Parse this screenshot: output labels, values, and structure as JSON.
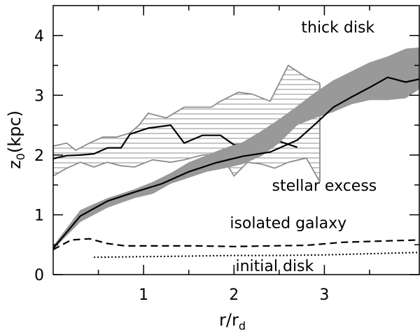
{
  "chart_data": {
    "type": "line",
    "xlim": [
      0.0,
      4.05
    ],
    "ylim": [
      0.0,
      4.5
    ],
    "xticks": [
      1,
      2,
      3
    ],
    "yticks": [
      0,
      1,
      2,
      3,
      4
    ],
    "xticks_minor": [
      0.5,
      1.5,
      2.5,
      3.5
    ],
    "yticks_minor": [
      0.5,
      1.5,
      2.5,
      3.5
    ],
    "xlabel": {
      "main": "r/r",
      "sub": "d"
    },
    "ylabel": {
      "main": "z",
      "sub": "0",
      "rest": "(kpc)"
    },
    "grid": false,
    "annotations": {
      "thick_disk": "thick disk",
      "stellar_excess": "stellar excess",
      "isolated_galaxy": "isolated galaxy",
      "initial_disk": "initial disk"
    },
    "colors": {
      "band_gray": "#999999",
      "hatch_gray": "#8c8c8c",
      "line": "#000000"
    },
    "series": [
      {
        "style": "hatched-band",
        "upper": [
          [
            0.0,
            2.15
          ],
          [
            0.15,
            2.2
          ],
          [
            0.25,
            2.08
          ],
          [
            0.4,
            2.2
          ],
          [
            0.55,
            2.3
          ],
          [
            0.7,
            2.3
          ],
          [
            0.85,
            2.37
          ],
          [
            0.95,
            2.5
          ],
          [
            1.05,
            2.7
          ],
          [
            1.25,
            2.62
          ],
          [
            1.45,
            2.8
          ],
          [
            1.75,
            2.8
          ],
          [
            1.85,
            2.9
          ],
          [
            2.05,
            3.05
          ],
          [
            2.2,
            3.02
          ],
          [
            2.4,
            2.9
          ],
          [
            2.6,
            3.5
          ],
          [
            2.8,
            3.3
          ],
          [
            2.95,
            3.2
          ]
        ],
        "lower": [
          [
            0.0,
            1.65
          ],
          [
            0.15,
            1.78
          ],
          [
            0.3,
            1.88
          ],
          [
            0.45,
            1.8
          ],
          [
            0.6,
            1.88
          ],
          [
            0.75,
            1.82
          ],
          [
            0.9,
            1.8
          ],
          [
            1.1,
            1.92
          ],
          [
            1.3,
            1.88
          ],
          [
            1.45,
            1.92
          ],
          [
            1.65,
            2.0
          ],
          [
            1.85,
            2.02
          ],
          [
            2.0,
            1.65
          ],
          [
            2.15,
            1.88
          ],
          [
            2.3,
            1.85
          ],
          [
            2.45,
            1.78
          ],
          [
            2.6,
            1.88
          ],
          [
            2.8,
            1.95
          ],
          [
            2.95,
            1.55
          ]
        ]
      },
      {
        "style": "solid",
        "role": "stellar-excess-mean",
        "points": [
          [
            0.0,
            1.94
          ],
          [
            0.15,
            1.99
          ],
          [
            0.3,
            2.0
          ],
          [
            0.45,
            2.02
          ],
          [
            0.6,
            2.12
          ],
          [
            0.75,
            2.12
          ],
          [
            0.85,
            2.35
          ],
          [
            1.05,
            2.45
          ],
          [
            1.3,
            2.5
          ],
          [
            1.45,
            2.2
          ],
          [
            1.65,
            2.33
          ],
          [
            1.85,
            2.33
          ],
          [
            2.0,
            2.17
          ],
          [
            2.2,
            2.2
          ],
          [
            2.35,
            2.22
          ],
          [
            2.5,
            2.23
          ],
          [
            2.7,
            2.13
          ]
        ]
      },
      {
        "style": "filled-band",
        "upper": [
          [
            0.0,
            0.48
          ],
          [
            0.3,
            1.08
          ],
          [
            0.6,
            1.28
          ],
          [
            0.9,
            1.43
          ],
          [
            1.1,
            1.55
          ],
          [
            1.3,
            1.7
          ],
          [
            1.5,
            1.88
          ],
          [
            1.7,
            2.0
          ],
          [
            1.9,
            2.12
          ],
          [
            2.1,
            2.22
          ],
          [
            2.3,
            2.4
          ],
          [
            2.5,
            2.6
          ],
          [
            2.7,
            2.82
          ],
          [
            2.9,
            3.05
          ],
          [
            3.1,
            3.25
          ],
          [
            3.3,
            3.4
          ],
          [
            3.5,
            3.55
          ],
          [
            3.7,
            3.65
          ],
          [
            3.9,
            3.78
          ],
          [
            4.05,
            3.8
          ]
        ],
        "lower": [
          [
            0.0,
            0.42
          ],
          [
            0.3,
            0.88
          ],
          [
            0.6,
            1.12
          ],
          [
            0.9,
            1.28
          ],
          [
            1.1,
            1.35
          ],
          [
            1.3,
            1.52
          ],
          [
            1.5,
            1.62
          ],
          [
            1.7,
            1.72
          ],
          [
            1.9,
            1.78
          ],
          [
            2.1,
            1.85
          ],
          [
            2.3,
            1.98
          ],
          [
            2.5,
            2.2
          ],
          [
            2.7,
            2.5
          ],
          [
            2.9,
            2.62
          ],
          [
            3.1,
            2.72
          ],
          [
            3.3,
            2.85
          ],
          [
            3.5,
            2.92
          ],
          [
            3.7,
            2.92
          ],
          [
            3.9,
            2.95
          ],
          [
            4.05,
            3.1
          ]
        ]
      },
      {
        "style": "solid",
        "role": "thick-disk-mean",
        "points": [
          [
            0.0,
            0.44
          ],
          [
            0.3,
            0.98
          ],
          [
            0.6,
            1.23
          ],
          [
            0.9,
            1.38
          ],
          [
            1.2,
            1.52
          ],
          [
            1.5,
            1.72
          ],
          [
            1.8,
            1.87
          ],
          [
            2.1,
            1.98
          ],
          [
            2.4,
            2.05
          ],
          [
            2.7,
            2.25
          ],
          [
            2.9,
            2.52
          ],
          [
            3.1,
            2.8
          ],
          [
            3.3,
            2.97
          ],
          [
            3.5,
            3.13
          ],
          [
            3.7,
            3.3
          ],
          [
            3.9,
            3.22
          ],
          [
            4.05,
            3.27
          ]
        ]
      },
      {
        "style": "dashed",
        "role": "isolated-galaxy",
        "points": [
          [
            0.0,
            0.42
          ],
          [
            0.2,
            0.58
          ],
          [
            0.4,
            0.6
          ],
          [
            0.6,
            0.52
          ],
          [
            0.8,
            0.48
          ],
          [
            1.2,
            0.48
          ],
          [
            1.6,
            0.48
          ],
          [
            2.0,
            0.47
          ],
          [
            2.4,
            0.48
          ],
          [
            2.8,
            0.49
          ],
          [
            3.2,
            0.54
          ],
          [
            3.6,
            0.56
          ],
          [
            4.05,
            0.58
          ]
        ]
      },
      {
        "style": "dotted",
        "role": "initial-disk",
        "points": [
          [
            0.45,
            0.29
          ],
          [
            1.0,
            0.3
          ],
          [
            1.5,
            0.31
          ],
          [
            2.0,
            0.32
          ],
          [
            2.5,
            0.32
          ],
          [
            3.0,
            0.33
          ],
          [
            3.5,
            0.35
          ],
          [
            4.05,
            0.37
          ]
        ]
      }
    ]
  }
}
